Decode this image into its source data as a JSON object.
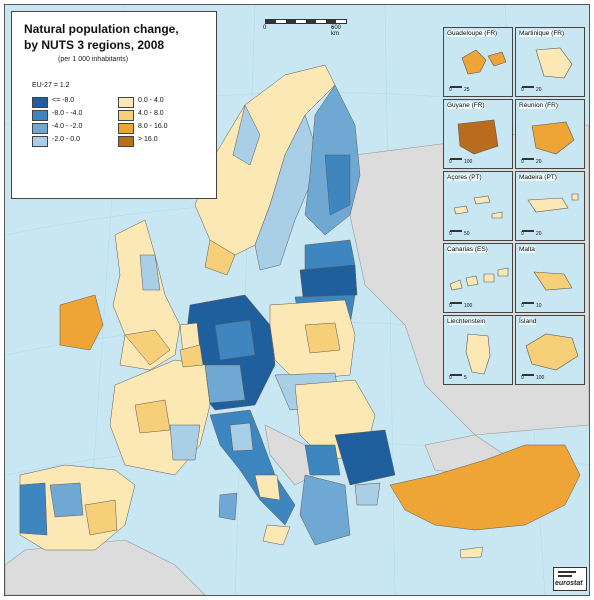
{
  "title": {
    "line1": "Natural population change,",
    "line2": "by NUTS 3 regions, 2008",
    "subtitle": "(per 1 000 inhabitants)"
  },
  "legend": {
    "reference": "EU-27 = 1.2",
    "classes": [
      {
        "label": "<= -8.0",
        "color": "#1f5f9e"
      },
      {
        "label": "-8.0 - -4.0",
        "color": "#3d86bf"
      },
      {
        "label": "-4.0 - -2.0",
        "color": "#6fa9d3"
      },
      {
        "label": "-2.0 - 0.0",
        "color": "#a9cfe6"
      },
      {
        "label": "0.0 - 4.0",
        "color": "#fbe8b4"
      },
      {
        "label": "4.0 - 8.0",
        "color": "#f7cf78"
      },
      {
        "label": "8.0 - 16.0",
        "color": "#eea536"
      },
      {
        "label": "> 16.0",
        "color": "#b96d1c"
      }
    ]
  },
  "scalebar": {
    "start": "0",
    "end": "600 km"
  },
  "insets": [
    {
      "name": "Guadeloupe (FR)",
      "scale_end": "25"
    },
    {
      "name": "Martinique (FR)",
      "scale_end": "20"
    },
    {
      "name": "Guyane (FR)",
      "scale_end": "100"
    },
    {
      "name": "Réunion (FR)",
      "scale_end": "20"
    },
    {
      "name": "Açores (PT)",
      "scale_end": "50"
    },
    {
      "name": "Madeira (PT)",
      "scale_end": "20"
    },
    {
      "name": "Canarias (ES)",
      "scale_end": "100"
    },
    {
      "name": "Malta",
      "scale_end": "10"
    },
    {
      "name": "Liechtenstein",
      "scale_end": "5"
    },
    {
      "name": "Ísland",
      "scale_end": "100"
    }
  ],
  "scale_zero": "0",
  "logo": "eurostat",
  "colors": {
    "sea": "#c9e7f2",
    "non_eu_land": "#dcdcdc",
    "border": "#5a5a5a"
  }
}
